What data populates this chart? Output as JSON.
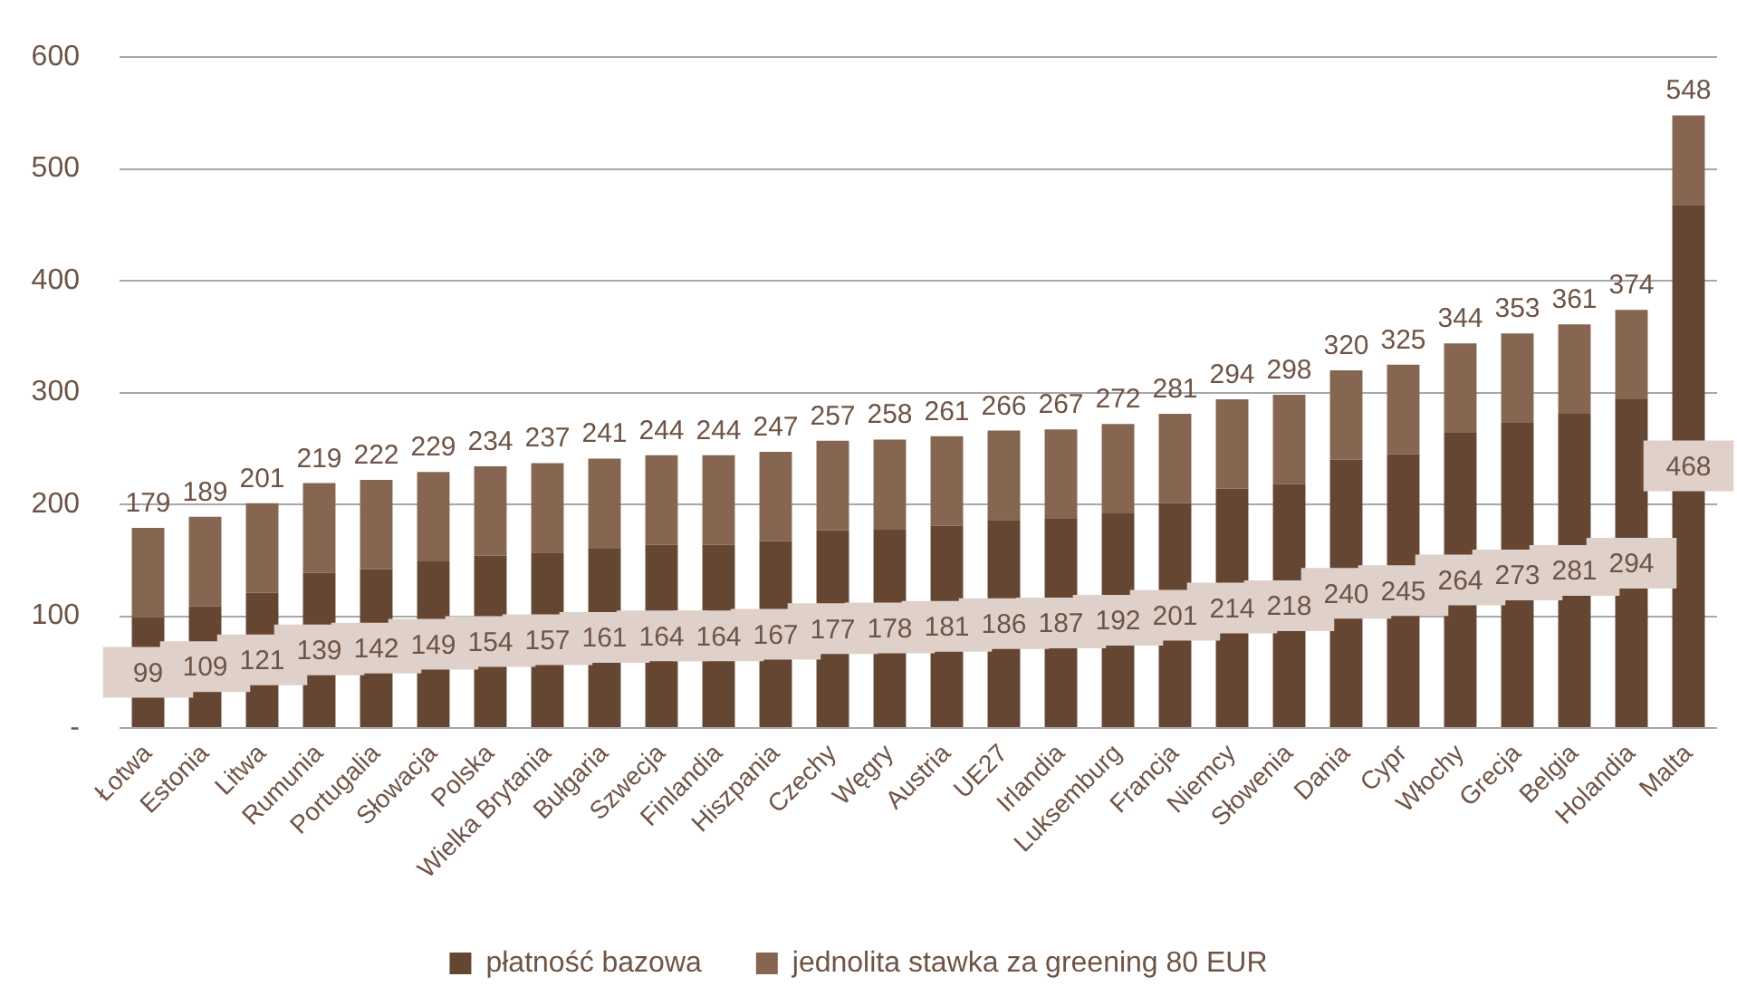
{
  "chart_data": {
    "type": "bar",
    "stacked": true,
    "categories": [
      "Łotwa",
      "Estonia",
      "Litwa",
      "Rumunia",
      "Portugalia",
      "Słowacja",
      "Polska",
      "Wielka Brytania",
      "Bułgaria",
      "Szwecja",
      "Finlandia",
      "Hiszpania",
      "Czechy",
      "Węgry",
      "Austria",
      "UE27",
      "Irlandia",
      "Luksemburg",
      "Francja",
      "Niemcy",
      "Słowenia",
      "Dania",
      "Cypr",
      "Włochy",
      "Grecja",
      "Belgia",
      "Holandia",
      "Malta"
    ],
    "series": [
      {
        "name": "płatność bazowa",
        "color": "#654632",
        "values": [
          99,
          109,
          121,
          139,
          142,
          149,
          154,
          157,
          161,
          164,
          164,
          167,
          177,
          178,
          181,
          186,
          187,
          192,
          201,
          214,
          218,
          240,
          245,
          264,
          273,
          281,
          294,
          468
        ],
        "value_labels": [
          "99",
          "109",
          "121",
          "139",
          "142",
          "149",
          "154",
          "157",
          "161",
          "164",
          "164",
          "167",
          "177",
          "178",
          "181",
          "186",
          "187",
          "192",
          "201",
          "214",
          "218",
          "240",
          "245",
          "264",
          "273",
          "281",
          "294",
          "468"
        ]
      },
      {
        "name": "jednolita stawka za greening 80 EUR",
        "color": "#866650",
        "values": [
          80,
          80,
          80,
          80,
          80,
          80,
          80,
          80,
          80,
          80,
          80,
          80,
          80,
          80,
          80,
          80,
          80,
          80,
          80,
          80,
          80,
          80,
          80,
          80,
          80,
          80,
          80,
          80
        ]
      }
    ],
    "totals": [
      "179",
      "189",
      "201",
      "219",
      "222",
      "229",
      "234",
      "237",
      "241",
      "244",
      "244",
      "247",
      "257",
      "258",
      "261",
      "266",
      "267",
      "272",
      "281",
      "294",
      "298",
      "320",
      "325",
      "344",
      "353",
      "361",
      "374",
      "548"
    ],
    "ylim": [
      0,
      600
    ],
    "yticks": [
      {
        "value": 0,
        "label": "-"
      },
      100,
      200,
      300,
      400,
      500,
      600
    ],
    "grid": "y",
    "legend": "bottom"
  }
}
